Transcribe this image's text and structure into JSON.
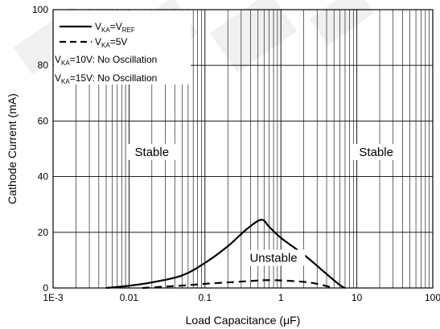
{
  "chart_data": {
    "type": "line",
    "xlabel_prefix": "Load Capacitance (",
    "xlabel_unit": "μF",
    "xlabel_suffix": ")",
    "ylabel": "Cathode Current (mA)",
    "xscale": "log",
    "xlim": [
      0.001,
      100
    ],
    "ylim": [
      0,
      100
    ],
    "x_tick_values": [
      0.001,
      0.01,
      0.1,
      1,
      10,
      100
    ],
    "x_tick_labels": [
      "1E-3",
      "0.01",
      "0.1",
      "1",
      "10",
      "100"
    ],
    "y_ticks": [
      0,
      20,
      40,
      60,
      80,
      100
    ],
    "grid": "x-minor and major vertical lines, horizontal lines at major y ticks",
    "legend_position": "top-left",
    "series": [
      {
        "dash": "solid",
        "legend": {
          "v": "V",
          "v_sub": "KA",
          "eq": "=V",
          "eq_sub": "REF"
        },
        "x": [
          0.005,
          0.01,
          0.02,
          0.05,
          0.1,
          0.2,
          0.35,
          0.55,
          0.7,
          1,
          2,
          4,
          6,
          7
        ],
        "y": [
          0,
          0.8,
          2,
          4.5,
          9,
          15,
          21,
          24.5,
          22,
          18,
          12,
          5,
          1,
          0
        ]
      },
      {
        "dash": "dashed",
        "legend": {
          "v": "V",
          "v_sub": "KA",
          "eq": "=5V"
        },
        "x": [
          0.015,
          0.03,
          0.06,
          0.1,
          0.2,
          0.4,
          0.6,
          1,
          2,
          3,
          5
        ],
        "y": [
          0,
          0.5,
          1,
          1.5,
          2,
          2.5,
          2.8,
          2.7,
          2.2,
          1.5,
          0
        ]
      }
    ],
    "legend_notes": [
      {
        "v": "V",
        "v_sub": "KA",
        "text": "=10V: No Oscillation"
      },
      {
        "v": "V",
        "v_sub": "KA",
        "text": "=15V: No Oscillation"
      }
    ],
    "annotations": [
      {
        "text": "Stable",
        "x": 0.02,
        "y": 48
      },
      {
        "text": "Stable",
        "x": 18,
        "y": 48
      },
      {
        "text": "Unstable",
        "x": 0.8,
        "y": 10
      }
    ]
  },
  "watermark": {
    "color": "#6e6e6e"
  }
}
